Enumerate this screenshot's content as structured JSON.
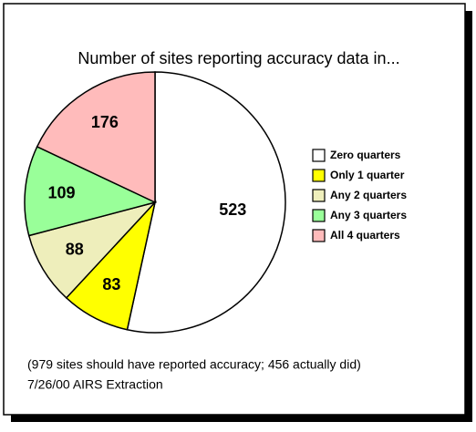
{
  "chart_data": {
    "type": "pie",
    "title": "Number of sites reporting accuracy data in...",
    "categories": [
      "Zero quarters",
      "Only 1 quarter",
      "Any 2 quarters",
      "Any 3 quarters",
      "All 4 quarters"
    ],
    "values": [
      523,
      83,
      88,
      109,
      176
    ],
    "colors": [
      "#ffffff",
      "#ffff00",
      "#eeeebb",
      "#99ff99",
      "#ffbbbb"
    ],
    "notes": [
      "(979 sites should have reported accuracy; 456 actually did)",
      "7/26/00 AIRS Extraction"
    ]
  }
}
